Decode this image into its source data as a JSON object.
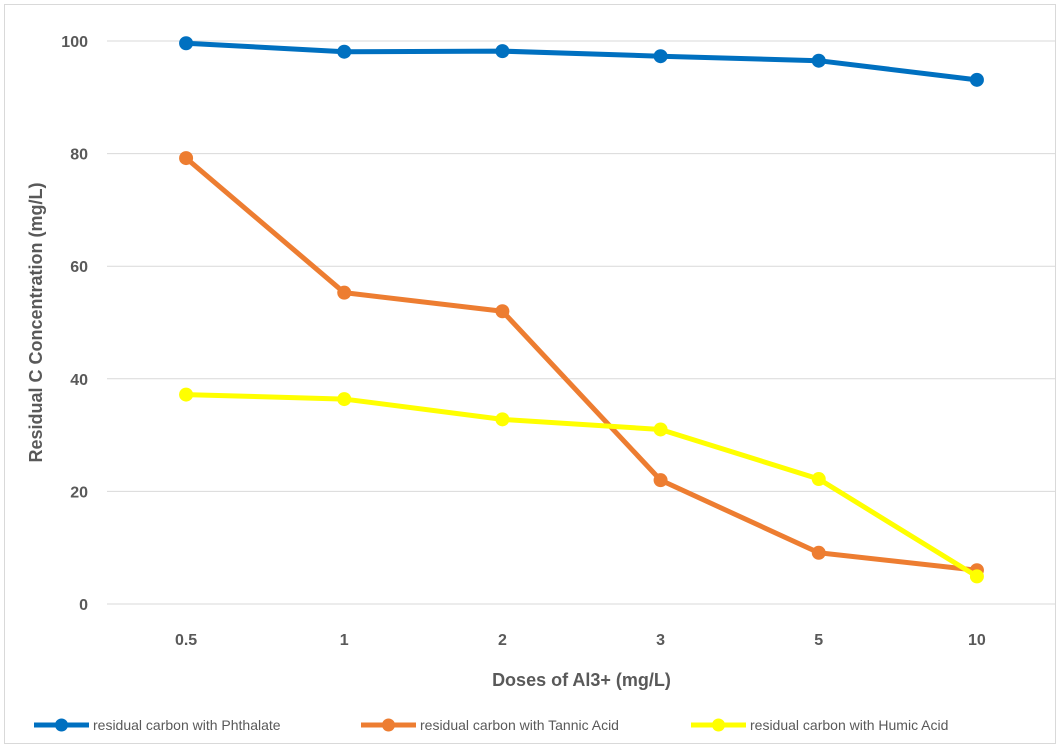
{
  "chart_data": {
    "type": "line",
    "title": "",
    "xlabel": "Doses of Al3+ (mg/L)",
    "ylabel": "Residual C Concentration (mg/L)",
    "categories": [
      "0.5",
      "1",
      "2",
      "3",
      "5",
      "10"
    ],
    "ylim": [
      0,
      100
    ],
    "yticks": [
      0,
      20,
      40,
      60,
      80,
      100
    ],
    "grid": true,
    "legend": "bottom",
    "series": [
      {
        "name": "residual carbon with Phthalate",
        "color": "#0070C0",
        "values": [
          99.6,
          98.1,
          98.2,
          97.3,
          96.5,
          93.1
        ]
      },
      {
        "name": "residual carbon with Tannic Acid",
        "color": "#ED7D31",
        "values": [
          79.2,
          55.3,
          52.0,
          22.0,
          9.1,
          6.0
        ]
      },
      {
        "name": "residual carbon with Humic Acid",
        "color": "#FFFF00",
        "values": [
          37.2,
          36.4,
          32.8,
          31.0,
          22.2,
          4.9
        ]
      }
    ]
  }
}
